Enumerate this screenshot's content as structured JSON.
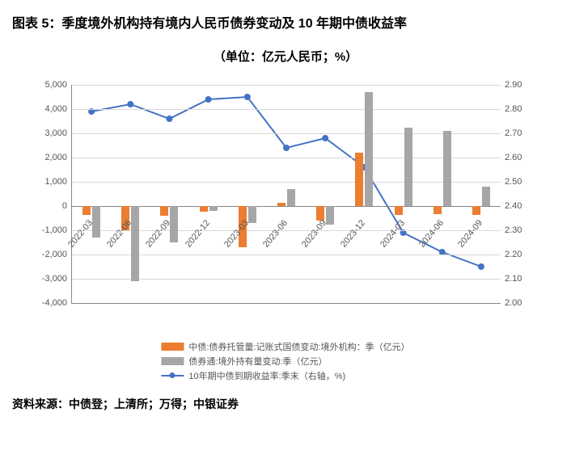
{
  "title": "图表 5：季度境外机构持有境内人民币债券变动及 10 年期中债收益率",
  "subtitle": "（单位：亿元人民币；%）",
  "source": "资料来源：中债登；上清所；万得；中银证券",
  "chart": {
    "type": "combo-bar-line",
    "categories": [
      "2022-03",
      "2022-06",
      "2022-09",
      "2022-12",
      "2023-03",
      "2023-06",
      "2023-09",
      "2023-12",
      "2024-03",
      "2024-06",
      "2024-09"
    ],
    "left_axis": {
      "min": -4000,
      "max": 5000,
      "step": 1000
    },
    "right_axis": {
      "min": 2.0,
      "max": 2.9,
      "step": 0.1
    },
    "series_bar1": {
      "label": "中债:债券托管量:记账式国债变动:境外机构：季（亿元）",
      "color": "#ed7d31",
      "values": [
        -350,
        -1000,
        -400,
        -220,
        -1700,
        120,
        -600,
        2200,
        -350,
        -320,
        -350
      ]
    },
    "series_bar2": {
      "label": "债券通:境外持有量变动:季（亿元）",
      "color": "#a6a6a6",
      "values": [
        -1300,
        -3100,
        -1500,
        -200,
        -700,
        700,
        -750,
        4700,
        3250,
        3100,
        800
      ]
    },
    "series_line": {
      "label": "10年期中债到期收益率:季末（右轴，%)",
      "color": "#4472c4",
      "values": [
        2.79,
        2.82,
        2.76,
        2.84,
        2.85,
        2.64,
        2.68,
        2.56,
        2.29,
        2.21,
        2.15
      ]
    },
    "grid_color": "#d9d9d9",
    "background": "#ffffff"
  }
}
